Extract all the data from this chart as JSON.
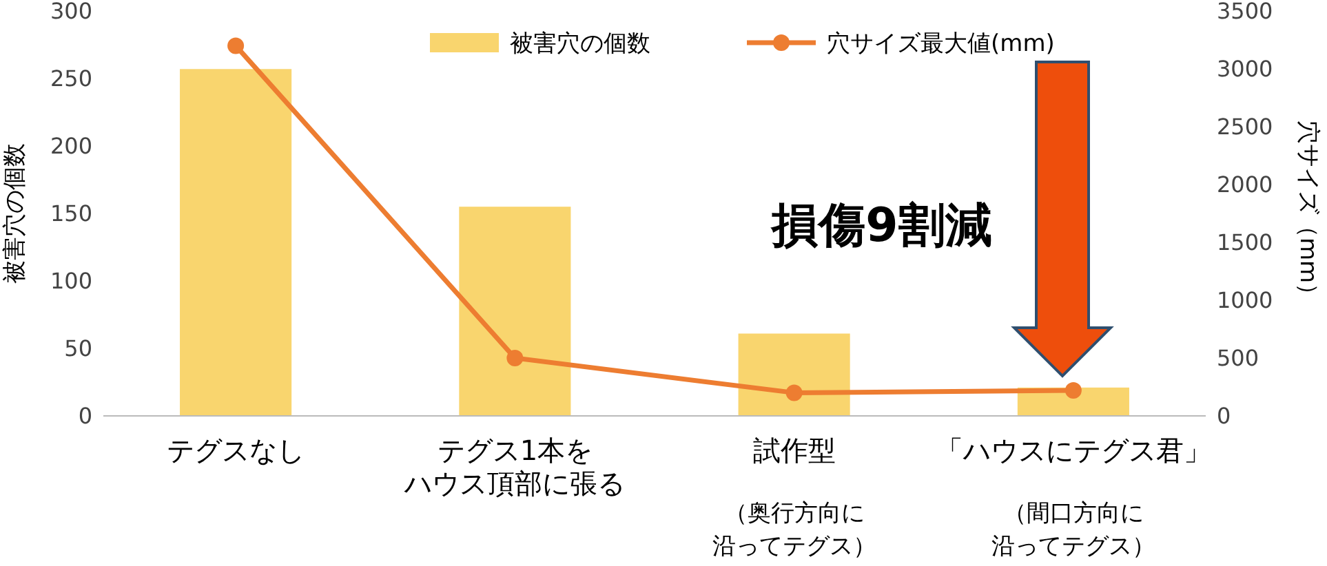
{
  "chart_data": {
    "type": "bar",
    "categories": [
      "テグスなし",
      "テグス1本をハウス頂部に張る",
      "試作型",
      "「ハウスにテグス君」"
    ],
    "series": [
      {
        "name": "被害穴の個数",
        "color": "#f9d56e",
        "values": [
          257,
          155,
          61,
          21
        ]
      },
      {
        "name": "穴サイズ最大値(mm)",
        "type": "line",
        "axis": "y2",
        "color": "#ed7d31",
        "marker": "circle",
        "values": [
          3200,
          500,
          200,
          220
        ]
      }
    ],
    "ylabel": "被害穴の個数",
    "y2label": "穴サイズ（mm）",
    "ylim": [
      0,
      300
    ],
    "yticks": [
      0,
      50,
      100,
      150,
      200,
      250,
      300
    ],
    "y2lim": [
      0,
      3500
    ],
    "y2ticks": [
      0,
      500,
      1000,
      1500,
      2000,
      2500,
      3000,
      3500
    ],
    "legend": "top",
    "grid": false,
    "annotations": [
      "損傷9割減",
      "（奥行方向に",
      "沿ってテグス）",
      "（間口方向に",
      "沿ってテグス）"
    ]
  }
}
